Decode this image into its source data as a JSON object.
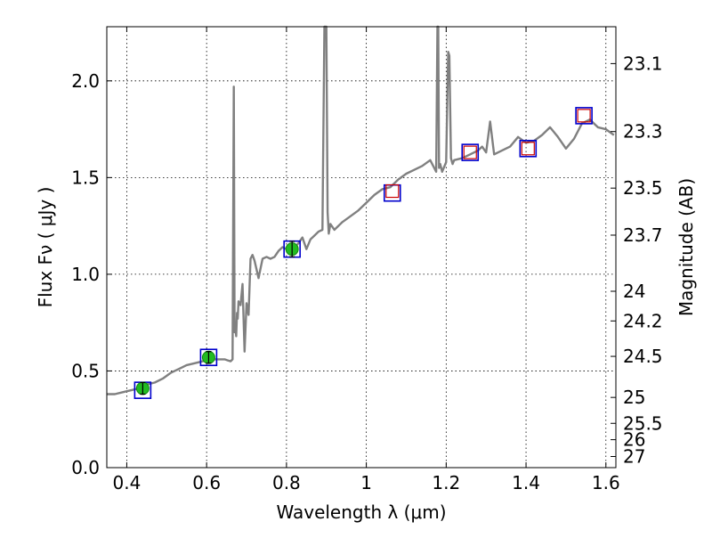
{
  "chart_data": {
    "type": "line",
    "title": "",
    "xlabel": "Wavelength  λ (μm)",
    "ylabel": "Flux  Fν  ( μJy )",
    "y2label": "Magnitude (AB)",
    "xlim": [
      0.35,
      1.625
    ],
    "ylim": [
      0.0,
      2.28
    ],
    "grid": true,
    "x_ticks": [
      {
        "value": 0.4,
        "label": "0.4"
      },
      {
        "value": 0.6,
        "label": "0.6"
      },
      {
        "value": 0.8,
        "label": "0.8"
      },
      {
        "value": 1.0,
        "label": "1"
      },
      {
        "value": 1.2,
        "label": "1.2"
      },
      {
        "value": 1.4,
        "label": "1.4"
      },
      {
        "value": 1.6,
        "label": "1.6"
      }
    ],
    "y_ticks": [
      {
        "value": 0.0,
        "label": "0.0"
      },
      {
        "value": 0.5,
        "label": "0.5"
      },
      {
        "value": 1.0,
        "label": "1.0"
      },
      {
        "value": 1.5,
        "label": "1.5"
      },
      {
        "value": 2.0,
        "label": "2.0"
      }
    ],
    "mag_ticks": [
      {
        "value": 23.1,
        "label": "23.1"
      },
      {
        "value": 23.3,
        "label": "23.3"
      },
      {
        "value": 23.5,
        "label": "23.5"
      },
      {
        "value": 23.7,
        "label": "23.7"
      },
      {
        "value": 24.0,
        "label": "24"
      },
      {
        "value": 24.2,
        "label": "24.2"
      },
      {
        "value": 24.5,
        "label": "24.5"
      },
      {
        "value": 25.0,
        "label": "25"
      },
      {
        "value": 25.5,
        "label": "25.5"
      },
      {
        "value": 26.0,
        "label": "26"
      },
      {
        "value": 27.0,
        "label": "27"
      }
    ],
    "colors": {
      "spectrum": "#808080",
      "model_box": "#0000cc",
      "observed_box": "#cc0000",
      "detection": "#22bb22",
      "grid": "#000000"
    },
    "series": [
      {
        "name": "",
        "kind": "template-spectrum",
        "x": [
          0.35,
          0.37,
          0.39,
          0.41,
          0.43,
          0.45,
          0.47,
          0.49,
          0.51,
          0.53,
          0.55,
          0.57,
          0.59,
          0.61,
          0.63,
          0.645,
          0.66,
          0.665,
          0.668,
          0.67,
          0.672,
          0.674,
          0.676,
          0.678,
          0.68,
          0.685,
          0.69,
          0.695,
          0.7,
          0.705,
          0.71,
          0.715,
          0.72,
          0.73,
          0.74,
          0.75,
          0.76,
          0.77,
          0.78,
          0.79,
          0.8,
          0.81,
          0.82,
          0.83,
          0.84,
          0.85,
          0.86,
          0.87,
          0.88,
          0.89,
          0.895,
          0.9,
          0.903,
          0.906,
          0.91,
          0.92,
          0.94,
          0.96,
          0.98,
          1.0,
          1.02,
          1.04,
          1.06,
          1.08,
          1.1,
          1.12,
          1.14,
          1.16,
          1.175,
          1.178,
          1.18,
          1.182,
          1.185,
          1.19,
          1.2,
          1.205,
          1.208,
          1.212,
          1.216,
          1.22,
          1.24,
          1.26,
          1.28,
          1.29,
          1.3,
          1.31,
          1.32,
          1.34,
          1.36,
          1.38,
          1.4,
          1.42,
          1.44,
          1.46,
          1.48,
          1.5,
          1.52,
          1.54,
          1.56,
          1.58,
          1.6,
          1.62
        ],
        "y": [
          0.38,
          0.38,
          0.39,
          0.4,
          0.41,
          0.43,
          0.44,
          0.46,
          0.49,
          0.51,
          0.53,
          0.54,
          0.55,
          0.56,
          0.56,
          0.56,
          0.55,
          0.56,
          1.97,
          0.7,
          0.73,
          0.68,
          0.8,
          0.77,
          0.86,
          0.84,
          0.95,
          0.6,
          0.85,
          0.79,
          1.08,
          1.1,
          1.07,
          0.98,
          1.08,
          1.09,
          1.08,
          1.09,
          1.12,
          1.14,
          1.13,
          1.12,
          1.14,
          1.16,
          1.19,
          1.13,
          1.18,
          1.2,
          1.22,
          1.23,
          2.28,
          2.28,
          1.32,
          1.21,
          1.26,
          1.23,
          1.27,
          1.3,
          1.33,
          1.37,
          1.41,
          1.44,
          1.45,
          1.49,
          1.52,
          1.54,
          1.56,
          1.59,
          1.53,
          2.28,
          2.28,
          1.55,
          1.57,
          1.53,
          1.58,
          2.15,
          2.13,
          1.6,
          1.57,
          1.59,
          1.6,
          1.62,
          1.64,
          1.66,
          1.63,
          1.79,
          1.62,
          1.64,
          1.66,
          1.71,
          1.68,
          1.69,
          1.72,
          1.76,
          1.71,
          1.65,
          1.7,
          1.78,
          1.8,
          1.76,
          1.75,
          1.72
        ]
      }
    ],
    "photometry": [
      {
        "x": 0.44,
        "model": 0.4,
        "observed": 0.41,
        "err": 0.03,
        "detected": true
      },
      {
        "x": 0.605,
        "model": 0.57,
        "observed": 0.57,
        "err": 0.03,
        "detected": true
      },
      {
        "x": 0.814,
        "model": 1.13,
        "observed": 1.13,
        "err": 0.04,
        "detected": true
      },
      {
        "x": 1.065,
        "model": 1.42,
        "observed": 1.43,
        "err": 0.0,
        "detected": false
      },
      {
        "x": 1.26,
        "model": 1.63,
        "observed": 1.63,
        "err": 0.0,
        "detected": false
      },
      {
        "x": 1.405,
        "model": 1.65,
        "observed": 1.65,
        "err": 0.0,
        "detected": false
      },
      {
        "x": 1.545,
        "model": 1.82,
        "observed": 1.82,
        "err": 0.0,
        "detected": false
      }
    ]
  }
}
